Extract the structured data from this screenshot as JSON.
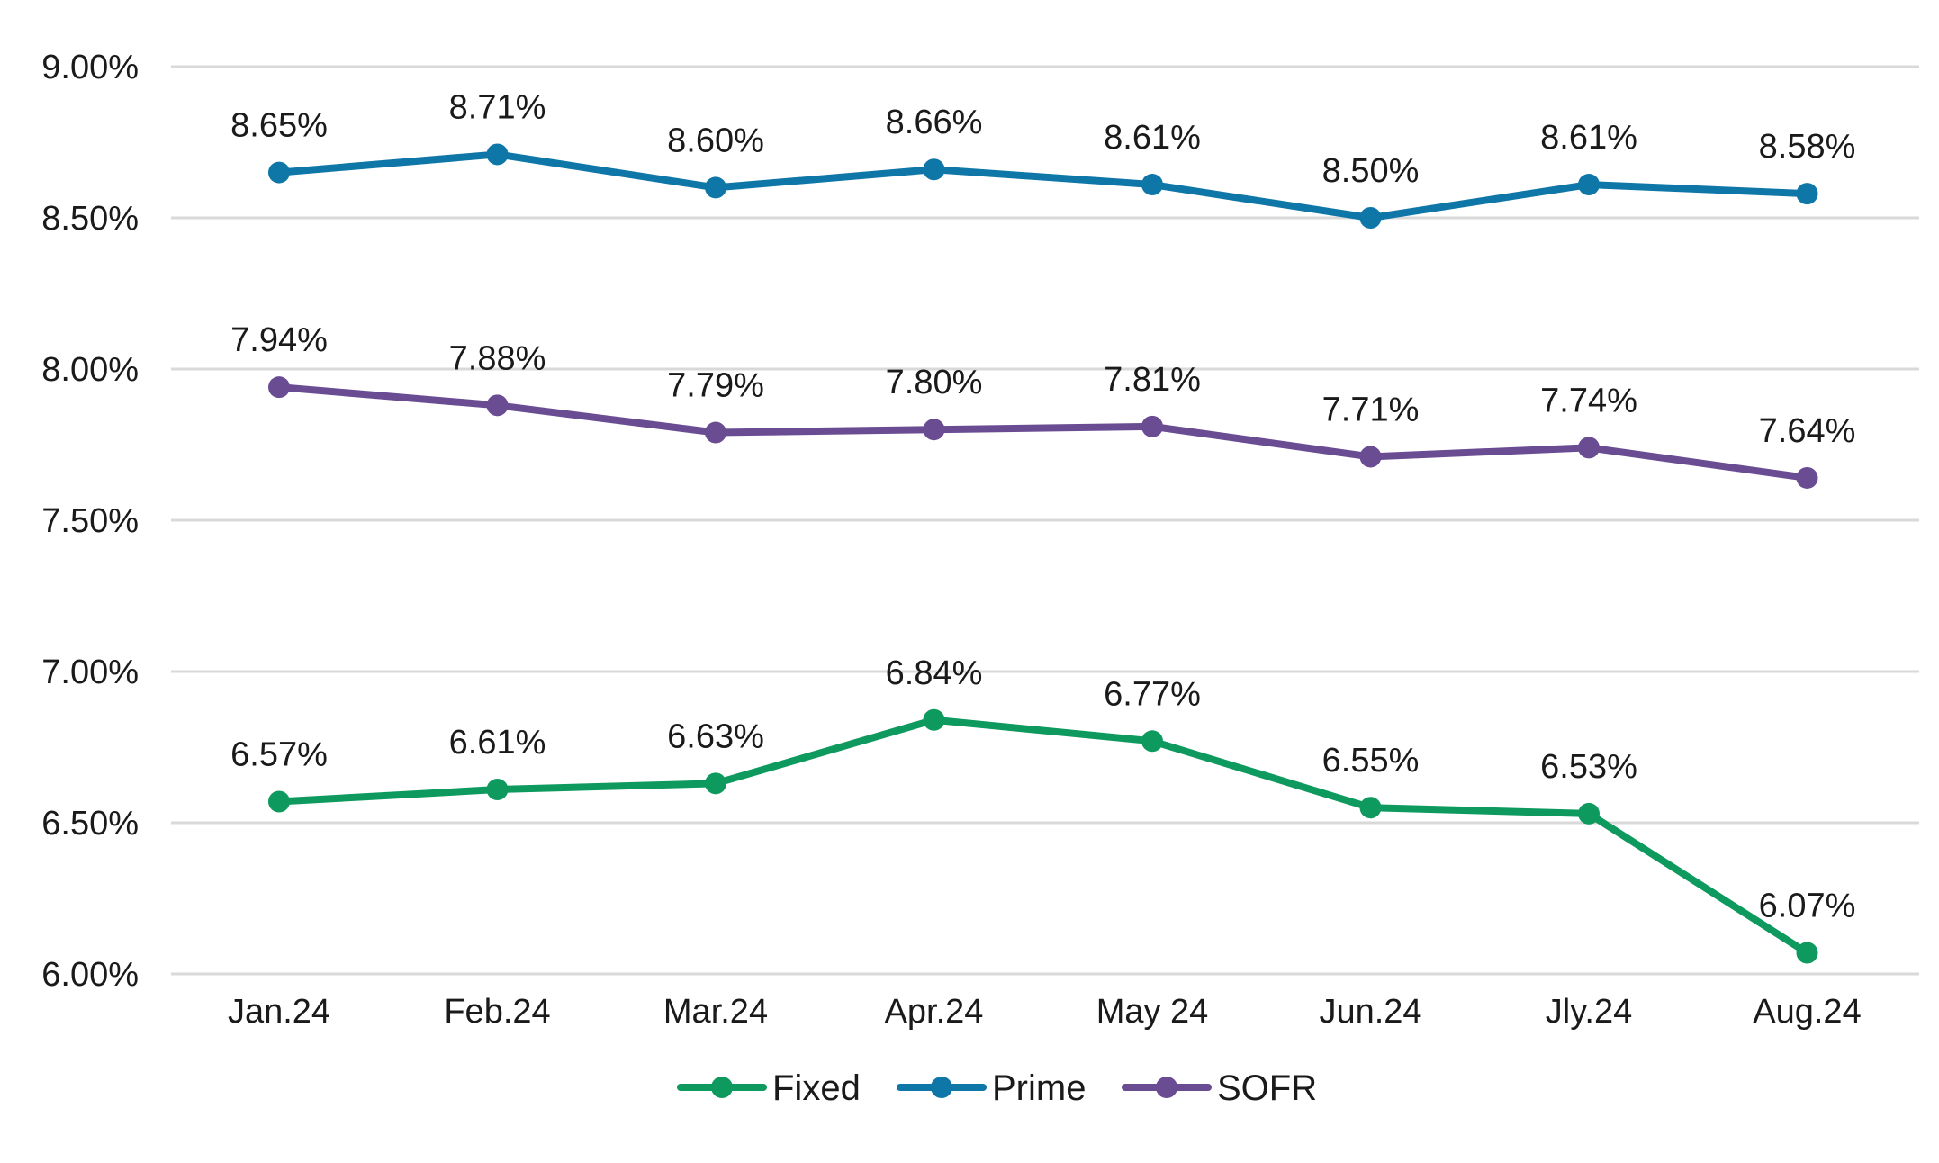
{
  "chart_data": {
    "type": "line",
    "title": "",
    "xlabel": "",
    "ylabel": "",
    "categories": [
      "Jan.24",
      "Feb.24",
      "Mar.24",
      "Apr.24",
      "May 24",
      "Jun.24",
      "Jly.24",
      "Aug.24"
    ],
    "ylim": [
      6.0,
      9.0
    ],
    "y_ticks": [
      6.0,
      6.5,
      7.0,
      7.5,
      8.0,
      8.5,
      9.0
    ],
    "y_tick_labels": [
      "6.00%",
      "6.50%",
      "7.00%",
      "7.50%",
      "8.00%",
      "8.50%",
      "9.00%"
    ],
    "grid": true,
    "legend_position": "bottom",
    "series": [
      {
        "name": "Fixed",
        "color": "#0e9a5f",
        "values": [
          6.57,
          6.61,
          6.63,
          6.84,
          6.77,
          6.55,
          6.53,
          6.07
        ],
        "labels": [
          "6.57%",
          "6.61%",
          "6.63%",
          "6.84%",
          "6.77%",
          "6.55%",
          "6.53%",
          "6.07%"
        ]
      },
      {
        "name": "Prime",
        "color": "#0f76a8",
        "values": [
          8.65,
          8.71,
          8.6,
          8.66,
          8.61,
          8.5,
          8.61,
          8.58
        ],
        "labels": [
          "8.65%",
          "8.71%",
          "8.60%",
          "8.66%",
          "8.61%",
          "8.50%",
          "8.61%",
          "8.58%"
        ]
      },
      {
        "name": "SOFR",
        "color": "#6a4c93",
        "values": [
          7.94,
          7.88,
          7.79,
          7.8,
          7.81,
          7.71,
          7.74,
          7.64
        ],
        "labels": [
          "7.94%",
          "7.88%",
          "7.79%",
          "7.80%",
          "7.81%",
          "7.71%",
          "7.74%",
          "7.64%"
        ]
      }
    ]
  }
}
